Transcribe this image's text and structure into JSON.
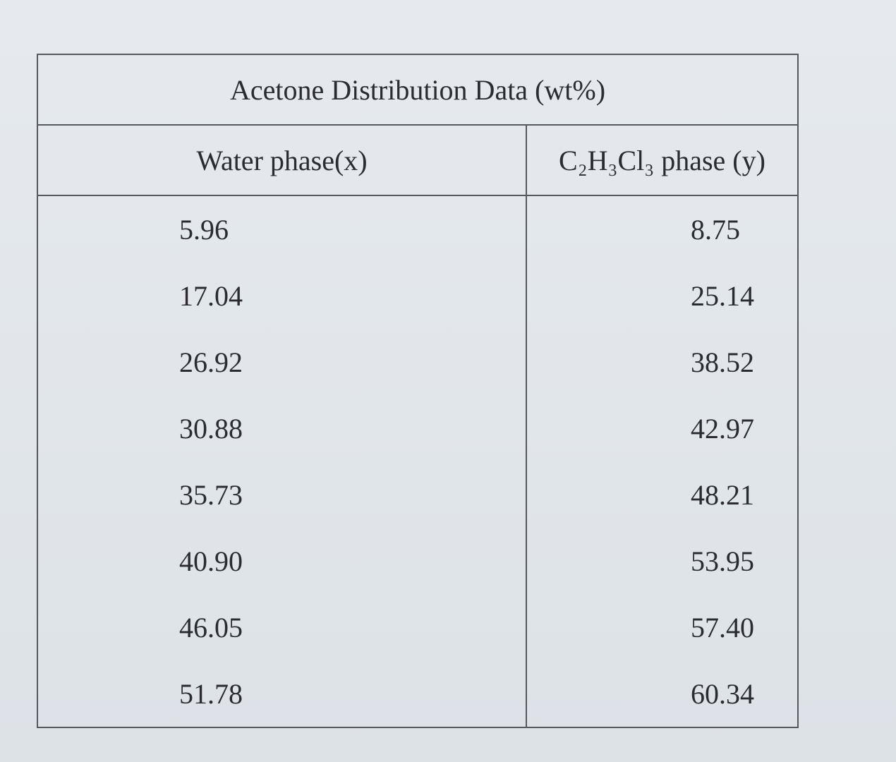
{
  "table": {
    "title": "Acetone Distribution Data (wt%)",
    "headers": [
      "Water phase(x)",
      "C₂H₃Cl₃ phase (y)"
    ],
    "rows": [
      [
        "5.96",
        "8.75"
      ],
      [
        "17.04",
        "25.14"
      ],
      [
        "26.92",
        "38.52"
      ],
      [
        "30.88",
        "42.97"
      ],
      [
        "35.73",
        "48.21"
      ],
      [
        "40.90",
        "53.95"
      ],
      [
        "46.05",
        "57.40"
      ],
      [
        "51.78",
        "60.34"
      ]
    ]
  }
}
